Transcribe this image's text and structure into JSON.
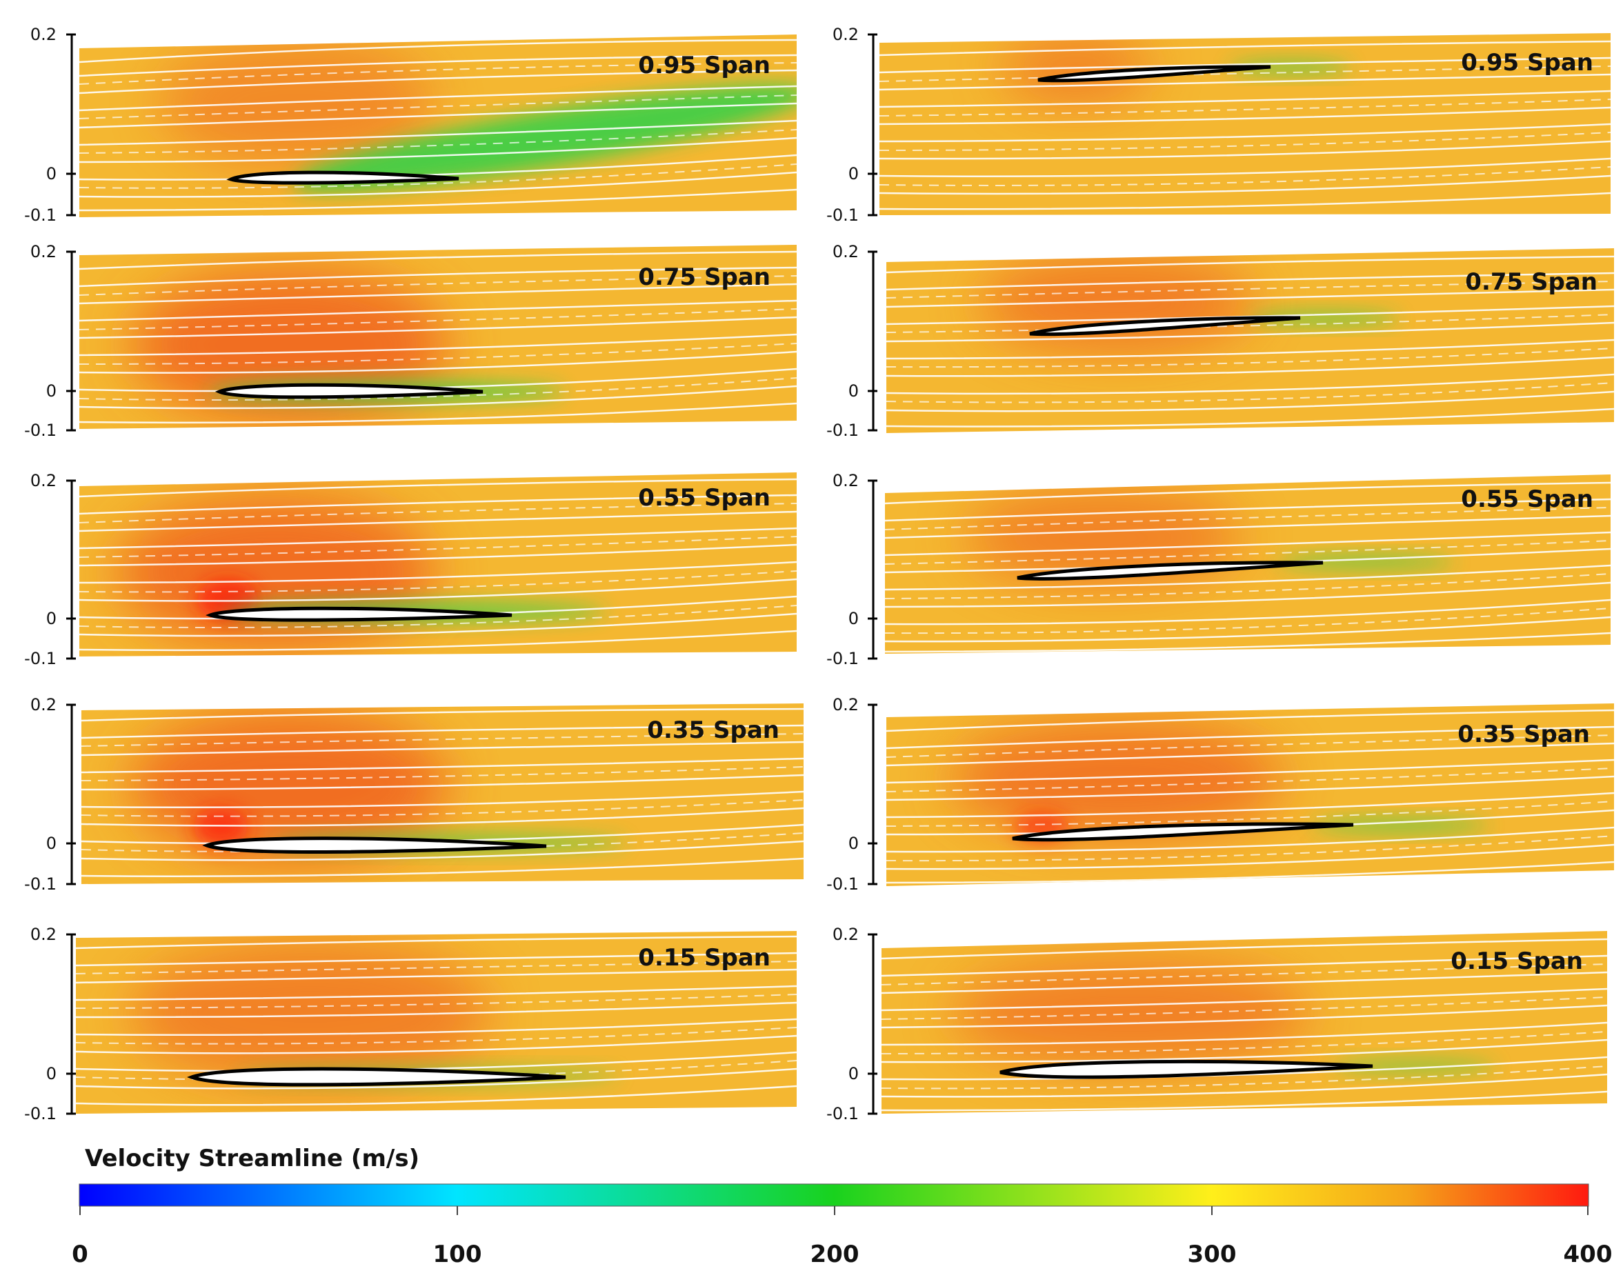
{
  "figure": {
    "y_axis_ticks": [
      "0.2",
      "0",
      "-0.1"
    ],
    "colorbar": {
      "title": "Velocity Streamline (m/s)",
      "min": 0,
      "max": 400,
      "ticks": [
        "0",
        "100",
        "200",
        "300",
        "400"
      ],
      "stops": [
        "#0000ff",
        "#00e5ff",
        "#19d21e",
        "#ffef1a",
        "#f5a319",
        "#ff1a0f"
      ]
    },
    "colors": {
      "base_flow": "#f4b731",
      "high_speed": "#f0561d",
      "low_speed_wake": "#2fd24a",
      "streamline": "#ffffff",
      "airfoil_outline": "#000000"
    },
    "panels": [
      {
        "column": "left",
        "span_label": "0.95 Span"
      },
      {
        "column": "left",
        "span_label": "0.75 Span"
      },
      {
        "column": "left",
        "span_label": "0.55 Span"
      },
      {
        "column": "left",
        "span_label": "0.35 Span"
      },
      {
        "column": "left",
        "span_label": "0.15 Span"
      },
      {
        "column": "right",
        "span_label": "0.95 Span"
      },
      {
        "column": "right",
        "span_label": "0.75 Span"
      },
      {
        "column": "right",
        "span_label": "0.55 Span"
      },
      {
        "column": "right",
        "span_label": "0.35 Span"
      },
      {
        "column": "right",
        "span_label": "0.15 Span"
      }
    ]
  }
}
